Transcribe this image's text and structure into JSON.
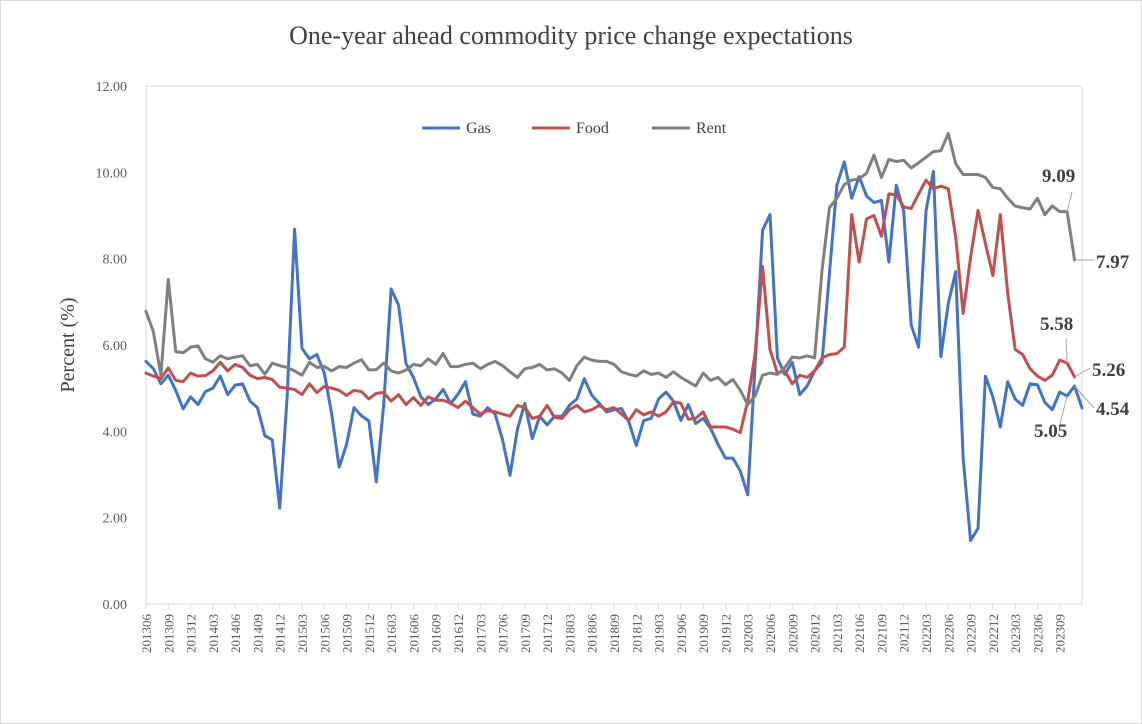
{
  "chart_data": {
    "type": "line",
    "title": "One-year ahead commodity price change expectations",
    "xlabel": "",
    "ylabel": "Percent (%)",
    "ylim": [
      0,
      12
    ],
    "yticks": [
      "0.00",
      "2.00",
      "4.00",
      "6.00",
      "8.00",
      "10.00",
      "12.00"
    ],
    "x_start": "2013-06",
    "x_end": "2023-11",
    "xtick_labels": [
      "201306",
      "201309",
      "201312",
      "201403",
      "201406",
      "201409",
      "201412",
      "201503",
      "201506",
      "201509",
      "201512",
      "201603",
      "201606",
      "201609",
      "201612",
      "201703",
      "201706",
      "201709",
      "201712",
      "201803",
      "201806",
      "201809",
      "201812",
      "201903",
      "201906",
      "201909",
      "201912",
      "202003",
      "202006",
      "202009",
      "202012",
      "202103",
      "202106",
      "202109",
      "202112",
      "202203",
      "202206",
      "202209",
      "202212",
      "202303",
      "202306",
      "202309"
    ],
    "legend_position": "top-center",
    "grid": false,
    "series": [
      {
        "name": "Gas",
        "color": "#4472c4",
        "values": [
          5.62,
          5.45,
          5.1,
          5.3,
          4.95,
          4.52,
          4.8,
          4.62,
          4.92,
          5.0,
          5.28,
          4.85,
          5.07,
          5.1,
          4.7,
          4.55,
          3.9,
          3.8,
          2.22,
          4.8,
          8.68,
          5.92,
          5.68,
          5.78,
          5.35,
          4.4,
          3.17,
          3.7,
          4.55,
          4.36,
          4.24,
          2.83,
          4.62,
          7.3,
          6.92,
          5.57,
          5.25,
          4.8,
          4.62,
          4.75,
          4.97,
          4.64,
          4.86,
          5.15,
          4.4,
          4.35,
          4.55,
          4.4,
          3.8,
          2.98,
          4.05,
          4.65,
          3.83,
          4.35,
          4.15,
          4.35,
          4.35,
          4.6,
          4.75,
          5.22,
          4.84,
          4.65,
          4.45,
          4.5,
          4.53,
          4.22,
          3.67,
          4.25,
          4.3,
          4.75,
          4.91,
          4.7,
          4.25,
          4.62,
          4.18,
          4.3,
          4.07,
          3.7,
          3.38,
          3.38,
          3.08,
          2.53,
          5.55,
          8.66,
          9.02,
          5.7,
          5.32,
          5.6,
          4.85,
          5.05,
          5.4,
          5.6,
          7.65,
          9.7,
          10.24,
          9.4,
          9.9,
          9.45,
          9.3,
          9.35,
          7.92,
          9.7,
          9.1,
          6.47,
          5.95,
          9.11,
          10.02,
          5.73,
          6.96,
          7.7,
          3.38,
          1.47,
          1.75,
          5.28,
          4.8,
          4.1,
          5.15,
          4.75,
          4.6,
          5.1,
          5.08,
          4.67,
          4.5,
          4.91,
          4.82,
          5.05,
          4.54
        ]
      },
      {
        "name": "Food",
        "color": "#c0504d",
        "values": [
          5.35,
          5.28,
          5.22,
          5.47,
          5.18,
          5.15,
          5.35,
          5.28,
          5.29,
          5.4,
          5.6,
          5.4,
          5.55,
          5.48,
          5.3,
          5.22,
          5.25,
          5.2,
          5.02,
          5.0,
          4.97,
          4.85,
          5.1,
          4.9,
          5.04,
          5.0,
          4.95,
          4.83,
          4.95,
          4.92,
          4.75,
          4.88,
          4.9,
          4.7,
          4.85,
          4.62,
          4.78,
          4.6,
          4.8,
          4.72,
          4.72,
          4.65,
          4.55,
          4.7,
          4.55,
          4.4,
          4.48,
          4.45,
          4.4,
          4.35,
          4.6,
          4.55,
          4.3,
          4.35,
          4.6,
          4.32,
          4.3,
          4.5,
          4.6,
          4.45,
          4.5,
          4.6,
          4.5,
          4.55,
          4.4,
          4.25,
          4.5,
          4.38,
          4.45,
          4.35,
          4.45,
          4.68,
          4.65,
          4.28,
          4.3,
          4.45,
          4.1,
          4.1,
          4.1,
          4.05,
          3.97,
          4.7,
          5.8,
          7.82,
          5.9,
          5.35,
          5.4,
          5.1,
          5.3,
          5.25,
          5.4,
          5.7,
          5.78,
          5.8,
          5.95,
          9.02,
          7.92,
          8.92,
          9.0,
          8.52,
          9.5,
          9.48,
          9.2,
          9.16,
          9.5,
          9.82,
          9.62,
          9.68,
          9.62,
          8.5,
          6.73,
          8.03,
          9.12,
          8.35,
          7.61,
          9.02,
          7.2,
          5.9,
          5.78,
          5.45,
          5.28,
          5.18,
          5.3,
          5.65,
          5.58,
          5.26
        ]
      },
      {
        "name": "Rent",
        "color": "#7f7f7f",
        "values": [
          6.78,
          6.3,
          5.3,
          7.52,
          5.85,
          5.82,
          5.95,
          5.98,
          5.68,
          5.6,
          5.75,
          5.68,
          5.72,
          5.75,
          5.52,
          5.55,
          5.32,
          5.58,
          5.52,
          5.48,
          5.4,
          5.3,
          5.6,
          5.48,
          5.5,
          5.4,
          5.5,
          5.48,
          5.58,
          5.66,
          5.42,
          5.43,
          5.58,
          5.4,
          5.35,
          5.42,
          5.55,
          5.52,
          5.68,
          5.55,
          5.8,
          5.5,
          5.5,
          5.55,
          5.58,
          5.45,
          5.55,
          5.62,
          5.52,
          5.38,
          5.25,
          5.45,
          5.48,
          5.55,
          5.42,
          5.45,
          5.35,
          5.18,
          5.52,
          5.72,
          5.65,
          5.62,
          5.62,
          5.55,
          5.38,
          5.32,
          5.28,
          5.4,
          5.32,
          5.35,
          5.25,
          5.38,
          5.25,
          5.15,
          5.05,
          5.35,
          5.18,
          5.25,
          5.08,
          5.2,
          4.95,
          4.62,
          4.82,
          5.3,
          5.35,
          5.32,
          5.48,
          5.72,
          5.7,
          5.75,
          5.7,
          7.72,
          9.18,
          9.4,
          9.72,
          9.82,
          9.85,
          9.98,
          10.4,
          9.88,
          10.3,
          10.25,
          10.28,
          10.1,
          10.22,
          10.35,
          10.48,
          10.5,
          10.9,
          10.2,
          9.95,
          9.95,
          9.95,
          9.88,
          9.65,
          9.62,
          9.4,
          9.22,
          9.18,
          9.15,
          9.4,
          9.02,
          9.22,
          9.09,
          9.09,
          7.97
        ]
      }
    ],
    "annotations": [
      {
        "text": "9.09",
        "series": "Rent",
        "target_index": 124
      },
      {
        "text": "7.97",
        "series": "Rent",
        "target_index": 125
      },
      {
        "text": "5.58",
        "series": "Food",
        "target_index": 124
      },
      {
        "text": "5.26",
        "series": "Food",
        "target_index": 125
      },
      {
        "text": "5.05",
        "series": "Gas",
        "target_index": 124
      },
      {
        "text": "4.54",
        "series": "Gas",
        "target_index": 125
      }
    ]
  }
}
